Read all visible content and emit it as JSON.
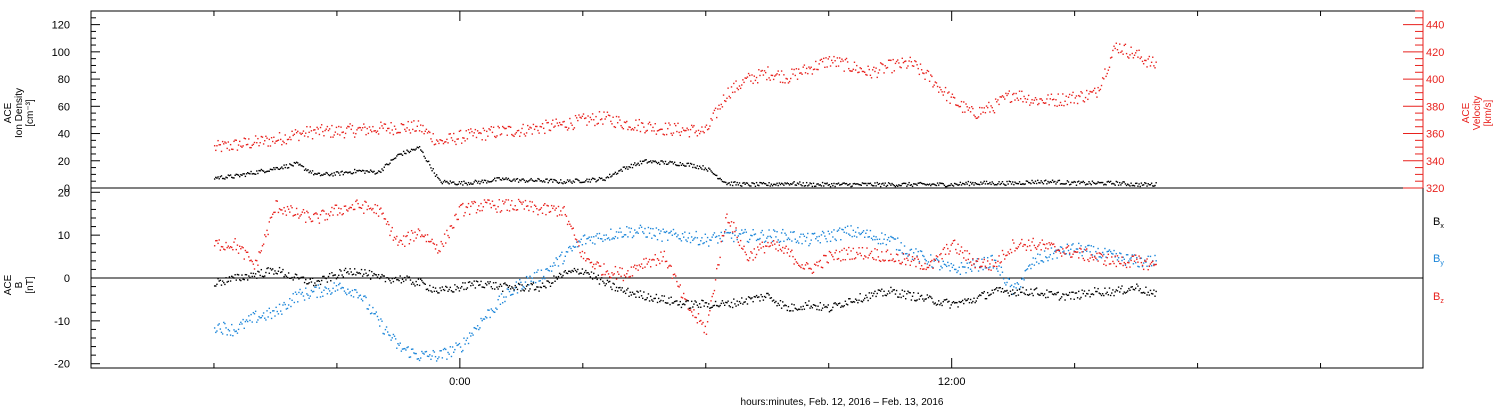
{
  "chart_data": [
    {
      "type": "scatter",
      "panel": "top",
      "ylabel_left": [
        "ACE",
        "Ion Density",
        "[cm⁻³]"
      ],
      "ylabel_right": [
        "ACE",
        "Velocity",
        "[km/s]"
      ],
      "ylim_left": [
        0,
        130
      ],
      "yticks_left": [
        "0",
        "20",
        "40",
        "60",
        "80",
        "100",
        "120"
      ],
      "ylim_right": [
        320,
        450
      ],
      "yticks_right": [
        "320",
        "340",
        "360",
        "380",
        "400",
        "420",
        "440"
      ],
      "colors": {
        "density": "#000000",
        "velocity": "#e8211d"
      },
      "series": [
        {
          "name": "Ion Density",
          "axis": "left",
          "x_hours": [
            -6,
            -5.5,
            -5,
            -4.5,
            -4,
            -3.5,
            -3,
            -2.5,
            -2,
            -1.5,
            -1,
            -0.5,
            0,
            0.5,
            1,
            1.5,
            2,
            2.5,
            3,
            3.5,
            4,
            4.5,
            5,
            5.5,
            6,
            6.5,
            7,
            7.5,
            8,
            8.5,
            9,
            9.5,
            10,
            10.5,
            11,
            11.5,
            12,
            12.5,
            13,
            13.5,
            14,
            14.5,
            15,
            15.5,
            16,
            16.5,
            17
          ],
          "values": [
            8,
            9,
            12,
            15,
            18,
            10,
            11,
            13,
            12,
            25,
            30,
            5,
            4,
            5,
            7,
            6,
            6,
            5,
            6,
            7,
            15,
            20,
            19,
            18,
            15,
            4,
            3,
            3,
            4,
            3,
            3,
            3,
            3,
            3,
            3,
            3,
            3,
            4,
            4,
            4,
            5,
            5,
            4,
            4,
            4,
            3,
            3
          ]
        },
        {
          "name": "Velocity",
          "axis": "right",
          "x_hours": [
            -6,
            -5.5,
            -5,
            -4.5,
            -4,
            -3.5,
            -3,
            -2.5,
            -2,
            -1.5,
            -1,
            -0.5,
            0,
            0.5,
            1,
            1.5,
            2,
            2.5,
            3,
            3.5,
            4,
            4.5,
            5,
            5.5,
            6,
            6.5,
            7,
            7.5,
            8,
            8.5,
            9,
            9.5,
            10,
            10.5,
            11,
            11.5,
            12,
            12.5,
            13,
            13.5,
            14,
            14.5,
            15,
            15.5,
            16,
            16.5,
            17
          ],
          "values": [
            350,
            352,
            354,
            356,
            360,
            362,
            362,
            363,
            364,
            365,
            365,
            354,
            358,
            360,
            362,
            363,
            365,
            367,
            370,
            372,
            368,
            366,
            364,
            363,
            362,
            390,
            400,
            405,
            402,
            408,
            414,
            410,
            405,
            410,
            412,
            400,
            385,
            375,
            380,
            390,
            385,
            385,
            387,
            390,
            425,
            418,
            410
          ]
        }
      ]
    },
    {
      "type": "scatter",
      "panel": "bottom",
      "ylabel_left": [
        "ACE",
        "B",
        "[nT]"
      ],
      "ylim": [
        -21,
        21
      ],
      "yticks": [
        "-20",
        "-10",
        "0",
        "10",
        "20"
      ],
      "legend": [
        {
          "label": "B",
          "sub": "x",
          "color": "#000000"
        },
        {
          "label": "B",
          "sub": "y",
          "color": "#1c86d9"
        },
        {
          "label": "B",
          "sub": "z",
          "color": "#e8211d"
        }
      ],
      "series": [
        {
          "name": "Bx",
          "x_hours": [
            -6,
            -5.5,
            -5,
            -4.5,
            -4,
            -3.5,
            -3,
            -2.5,
            -2,
            -1.5,
            -1,
            -0.5,
            0,
            0.5,
            1,
            1.5,
            2,
            2.5,
            3,
            3.5,
            4,
            4.5,
            5,
            5.5,
            6,
            6.5,
            7,
            7.5,
            8,
            8.5,
            9,
            9.5,
            10,
            10.5,
            11,
            11.5,
            12,
            12.5,
            13,
            13.5,
            14,
            14.5,
            15,
            15.5,
            16,
            16.5,
            17
          ],
          "values": [
            -1,
            0,
            1,
            2,
            0,
            -1,
            1,
            2,
            0,
            0,
            -1,
            -3,
            -2,
            -1,
            -2,
            -2,
            -2,
            1,
            2,
            -1,
            -3,
            -4,
            -5,
            -6,
            -6,
            -6,
            -5,
            -4,
            -7,
            -6,
            -7,
            -5,
            -4,
            -3,
            -4,
            -5,
            -6,
            -5,
            -3,
            -3,
            -3,
            -4,
            -4,
            -3,
            -3,
            -2,
            -4
          ]
        },
        {
          "name": "By",
          "x_hours": [
            -6,
            -5.5,
            -5,
            -4.5,
            -4,
            -3.5,
            -3,
            -2.5,
            -2,
            -1.5,
            -1,
            -0.5,
            0,
            0.5,
            1,
            1.5,
            2,
            2.5,
            3,
            3.5,
            4,
            4.5,
            5,
            5.5,
            6,
            6.5,
            7,
            7.5,
            8,
            8.5,
            9,
            9.5,
            10,
            10.5,
            11,
            11.5,
            12,
            12.5,
            13,
            13.5,
            14,
            14.5,
            15,
            15.5,
            16,
            16.5,
            17
          ],
          "values": [
            -11,
            -12,
            -9,
            -8,
            -4,
            -3,
            -2,
            -3,
            -10,
            -16,
            -18,
            -18,
            -16,
            -10,
            -5,
            -1,
            1,
            5,
            9,
            10,
            11,
            11,
            10,
            10,
            9,
            10,
            10,
            10,
            10,
            9,
            10,
            11,
            10,
            9,
            6,
            4,
            2,
            3,
            4,
            -3,
            4,
            6,
            7,
            6,
            5,
            4,
            4
          ]
        },
        {
          "name": "Bz",
          "x_hours": [
            -6,
            -5.5,
            -5,
            -4.5,
            -4,
            -3.5,
            -3,
            -2.5,
            -2,
            -1.5,
            -1,
            -0.5,
            0,
            0.5,
            1,
            1.5,
            2,
            2.5,
            3,
            3.5,
            4,
            4.5,
            5,
            5.5,
            6,
            6.5,
            7,
            7.5,
            8,
            8.5,
            9,
            9.5,
            10,
            10.5,
            11,
            11.5,
            12,
            12.5,
            13,
            13.5,
            14,
            14.5,
            15,
            15.5,
            16,
            16.5,
            17
          ],
          "values": [
            8,
            8,
            3,
            17,
            15,
            14,
            16,
            17,
            16,
            8,
            11,
            7,
            16,
            17,
            17,
            17,
            16,
            16,
            5,
            2,
            1,
            4,
            5,
            -6,
            -12,
            15,
            5,
            8,
            6,
            2,
            5,
            6,
            6,
            5,
            4,
            3,
            8,
            4,
            3,
            8,
            8,
            7,
            6,
            5,
            4,
            4,
            3
          ]
        }
      ]
    }
  ],
  "x_axis": {
    "range_hours": [
      -9,
      23.5
    ],
    "major_tick_labels": [
      {
        "hour": 0,
        "label": "0:00"
      },
      {
        "hour": 12,
        "label": "12:00"
      }
    ],
    "xlabel": "hours:minutes, Feb. 12, 2016 – Feb. 13, 2016"
  }
}
